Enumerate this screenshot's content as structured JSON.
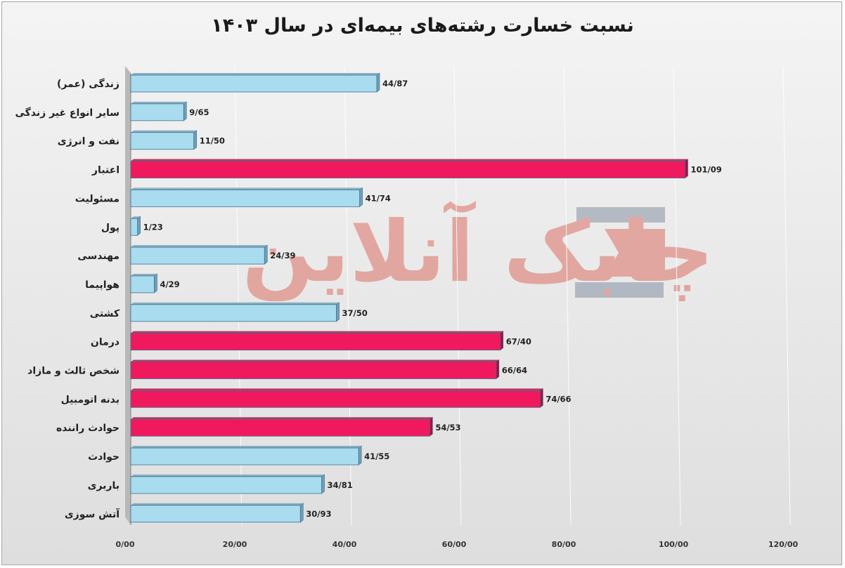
{
  "chart_data": {
    "type": "bar",
    "orientation": "horizontal",
    "title": "نسبت خسارت رشته‌های بیمه‌ای در سال ۱۴۰۳",
    "categories": [
      "زندگی (عمر)",
      "سایر انواع غیر زندگی",
      "نفت و انرژی",
      "اعتبار",
      "مسئولیت",
      "پول",
      "مهندسی",
      "هواپیما",
      "کشتی",
      "درمان",
      "شخص ثالث و مازاد",
      "بدنه اتومبیل",
      "حوادث راننده",
      "حوادث",
      "باربری",
      "آتش سوزی"
    ],
    "values": [
      44.87,
      9.65,
      11.5,
      101.09,
      41.74,
      1.23,
      24.39,
      4.29,
      37.5,
      67.4,
      66.64,
      74.66,
      54.53,
      41.55,
      34.81,
      30.93
    ],
    "value_labels": [
      "44/87",
      "9/65",
      "11/50",
      "101/09",
      "41/74",
      "1/23",
      "24/39",
      "4/29",
      "37/50",
      "67/40",
      "66/64",
      "74/66",
      "54/53",
      "41/55",
      "34/81",
      "30/93"
    ],
    "highlighted": [
      false,
      false,
      false,
      true,
      false,
      false,
      false,
      false,
      false,
      true,
      true,
      true,
      true,
      false,
      false,
      false
    ],
    "xlim": [
      0,
      120
    ],
    "x_ticks": [
      "0/00",
      "20/00",
      "40/00",
      "60/00",
      "80/00",
      "100/00",
      "120/00"
    ],
    "grid": true,
    "colors": {
      "normal_fill": "#a9dcee",
      "normal_side": "#6f9fb5",
      "highlight_fill": "#f0195e",
      "highlight_side": "#a5103f",
      "outline": "#3f6f93"
    },
    "watermark": "چابک آنلاین"
  }
}
